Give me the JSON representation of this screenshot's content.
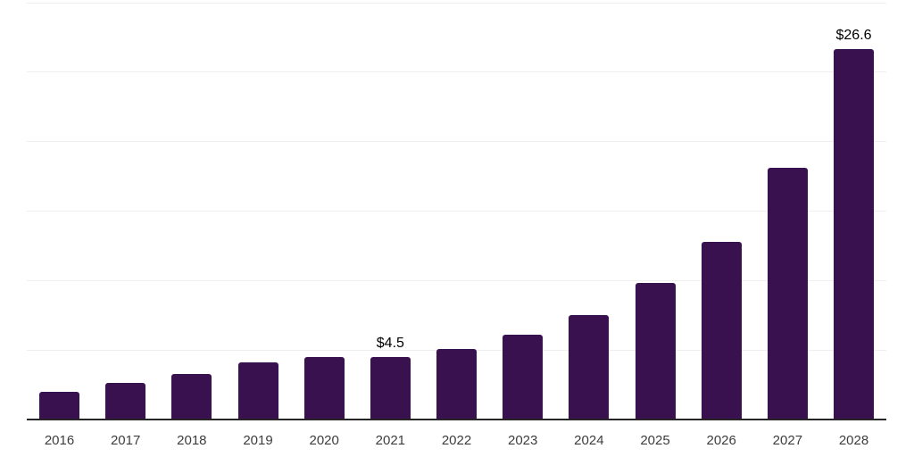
{
  "chart_data": {
    "type": "bar",
    "title": "",
    "xlabel": "",
    "ylabel": "",
    "categories": [
      "2016",
      "2017",
      "2018",
      "2019",
      "2020",
      "2021",
      "2022",
      "2023",
      "2024",
      "2025",
      "2026",
      "2027",
      "2028"
    ],
    "values": [
      2.0,
      2.6,
      3.3,
      4.1,
      4.5,
      4.5,
      5.1,
      6.1,
      7.5,
      9.8,
      12.8,
      18.1,
      26.6
    ],
    "point_labels": [
      "",
      "",
      "",
      "",
      "",
      "$4.5",
      "",
      "",
      "",
      "",
      "",
      "",
      "$26.6"
    ],
    "ylim": [
      0,
      30
    ],
    "grid_step": 5,
    "grid": "horizontal gridlines only, no y-axis tick labels",
    "legend": "none",
    "bar_color": "#3A114F",
    "axis_line_color": "#262626",
    "gridline_color": "#EFEFEF",
    "tick_label_color": "#3D3D3D",
    "data_label_color": "#000000"
  }
}
